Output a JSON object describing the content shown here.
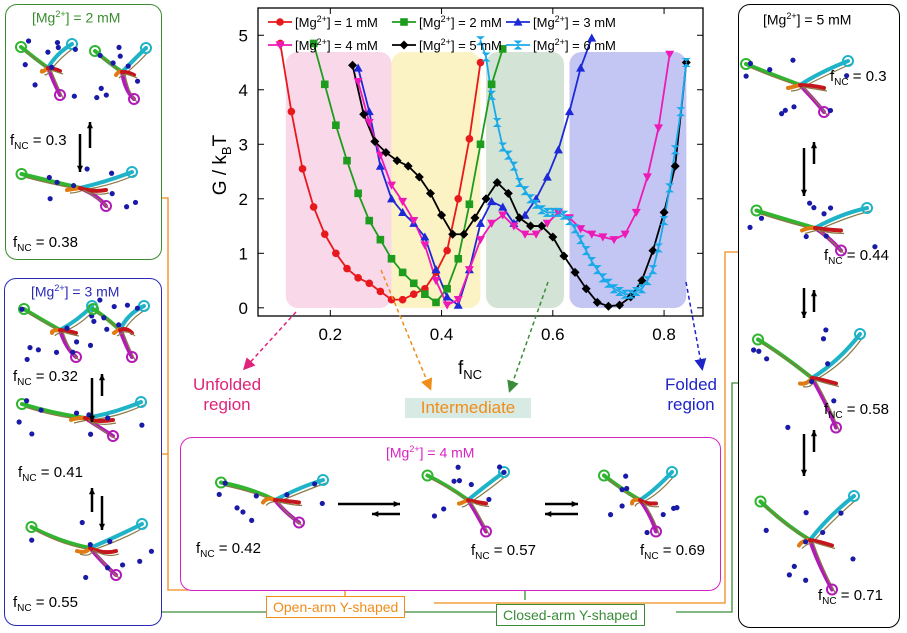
{
  "chart_data": {
    "type": "line",
    "xlabel_main": "f",
    "xlabel_sub": "NC",
    "ylabel_main": "G / k",
    "ylabel_sub": "B",
    "ylabel_tail": "T",
    "xlim": [
      0.07,
      0.87
    ],
    "ylim": [
      -0.15,
      5.5
    ],
    "xticks": [
      "0.2",
      "0.4",
      "0.6",
      "0.8"
    ],
    "xtick_values": [
      0.2,
      0.4,
      0.6,
      0.8
    ],
    "yticks": [
      "0",
      "1",
      "2",
      "3",
      "4",
      "5"
    ],
    "ytick_values": [
      0,
      1,
      2,
      3,
      4,
      5
    ],
    "legend_placement": "top",
    "shaded_regions": [
      {
        "from": 0.12,
        "to": 0.31,
        "color": "#f9d8ea"
      },
      {
        "from": 0.31,
        "to": 0.47,
        "color": "#fbf3c4"
      },
      {
        "from": 0.48,
        "to": 0.62,
        "color": "#d3e3d5"
      },
      {
        "from": 0.63,
        "to": 0.84,
        "color": "#c3c5f3"
      }
    ],
    "series": [
      {
        "name_pre": "[Mg",
        "name_sup": "2+",
        "name_post": "] = 1 mM",
        "color": "#e8191c",
        "marker": "circle",
        "x": [
          0.11,
          0.13,
          0.15,
          0.17,
          0.19,
          0.21,
          0.23,
          0.25,
          0.27,
          0.29,
          0.31,
          0.33,
          0.35,
          0.37,
          0.39,
          0.41,
          0.43,
          0.45,
          0.47
        ],
        "y": [
          4.85,
          3.6,
          2.55,
          1.85,
          1.35,
          1.0,
          0.72,
          0.55,
          0.45,
          0.3,
          0.15,
          0.15,
          0.25,
          0.35,
          0.65,
          1.05,
          2.0,
          3.1,
          4.5
        ]
      },
      {
        "name_pre": "[Mg",
        "name_sup": "2+",
        "name_post": "] = 2 mM",
        "color": "#1d9c1d",
        "marker": "square",
        "x": [
          0.17,
          0.19,
          0.21,
          0.23,
          0.25,
          0.27,
          0.29,
          0.31,
          0.33,
          0.35,
          0.37,
          0.39,
          0.41,
          0.43,
          0.45,
          0.47,
          0.49,
          0.51
        ],
        "y": [
          4.85,
          4.1,
          3.35,
          2.7,
          2.1,
          1.6,
          1.25,
          0.9,
          0.65,
          0.45,
          0.25,
          0.1,
          0.35,
          0.9,
          1.9,
          3.0,
          4.1,
          4.75
        ]
      },
      {
        "name_pre": "[Mg",
        "name_sup": "2+",
        "name_post": "] = 3 mM",
        "color": "#1d29d8",
        "marker": "triangle",
        "x": [
          0.25,
          0.27,
          0.29,
          0.31,
          0.33,
          0.35,
          0.37,
          0.39,
          0.41,
          0.43,
          0.45,
          0.47,
          0.49,
          0.51,
          0.53,
          0.55,
          0.57,
          0.59,
          0.61,
          0.63,
          0.65,
          0.67
        ],
        "y": [
          4.4,
          3.6,
          2.6,
          2.0,
          1.75,
          1.55,
          1.3,
          0.7,
          0.2,
          0.05,
          0.7,
          1.55,
          1.95,
          1.85,
          1.55,
          1.7,
          2.0,
          2.4,
          2.9,
          3.6,
          4.4,
          4.95
        ]
      },
      {
        "name_pre": "[Mg",
        "name_sup": "2+",
        "name_post": "] = 4 mM",
        "color": "#ee1ab8",
        "marker": "triangle-down",
        "x": [
          0.25,
          0.27,
          0.29,
          0.31,
          0.33,
          0.35,
          0.37,
          0.39,
          0.41,
          0.43,
          0.45,
          0.47,
          0.49,
          0.51,
          0.53,
          0.55,
          0.57,
          0.59,
          0.61,
          0.63,
          0.65,
          0.67,
          0.69,
          0.71,
          0.73,
          0.75,
          0.77,
          0.79,
          0.81
        ],
        "y": [
          4.15,
          3.4,
          2.8,
          2.25,
          1.95,
          1.6,
          1.15,
          0.5,
          0.05,
          0.15,
          0.7,
          1.25,
          1.55,
          1.7,
          1.5,
          1.35,
          1.35,
          1.55,
          1.75,
          1.65,
          1.45,
          1.35,
          1.3,
          1.25,
          1.35,
          1.75,
          2.4,
          3.3,
          4.65
        ]
      },
      {
        "name_pre": "[Mg",
        "name_sup": "2+",
        "name_post": "] = 5 mM",
        "color": "#000000",
        "marker": "diamond",
        "x": [
          0.24,
          0.26,
          0.28,
          0.3,
          0.32,
          0.34,
          0.36,
          0.38,
          0.4,
          0.42,
          0.44,
          0.46,
          0.48,
          0.5,
          0.52,
          0.54,
          0.56,
          0.58,
          0.6,
          0.62,
          0.64,
          0.66,
          0.68,
          0.7,
          0.72,
          0.74,
          0.76,
          0.78,
          0.8,
          0.82,
          0.84
        ],
        "y": [
          4.45,
          3.55,
          3.05,
          2.85,
          2.7,
          2.6,
          2.4,
          2.1,
          1.7,
          1.35,
          1.35,
          1.65,
          2.0,
          2.3,
          2.1,
          1.65,
          1.5,
          1.5,
          1.3,
          0.95,
          0.65,
          0.35,
          0.1,
          0.03,
          0.05,
          0.2,
          0.5,
          1.05,
          1.75,
          2.6,
          4.5
        ]
      },
      {
        "name_pre": "[Mg",
        "name_sup": "2+",
        "name_post": "] = 6 mM",
        "color": "#19aaea",
        "marker": "hourglass",
        "x": [
          0.47,
          0.48,
          0.49,
          0.5,
          0.51,
          0.52,
          0.53,
          0.54,
          0.55,
          0.56,
          0.57,
          0.58,
          0.59,
          0.6,
          0.61,
          0.62,
          0.63,
          0.64,
          0.65,
          0.66,
          0.67,
          0.68,
          0.69,
          0.7,
          0.71,
          0.72,
          0.73,
          0.74,
          0.75,
          0.76,
          0.77,
          0.78,
          0.79,
          0.8,
          0.81,
          0.82,
          0.83,
          0.84
        ],
        "y": [
          4.9,
          4.6,
          3.9,
          3.4,
          2.95,
          2.8,
          2.6,
          2.3,
          2.15,
          2.0,
          1.9,
          1.8,
          1.75,
          1.75,
          1.75,
          1.7,
          1.6,
          1.45,
          1.25,
          1.05,
          0.85,
          0.7,
          0.55,
          0.45,
          0.35,
          0.3,
          0.25,
          0.25,
          0.3,
          0.35,
          0.5,
          0.7,
          1.1,
          1.6,
          2.2,
          2.9,
          3.6,
          4.5
        ]
      }
    ]
  },
  "annotations": {
    "unfolded": [
      "Unfolded",
      "region"
    ],
    "intermediate": "Intermediate",
    "folded": [
      "Folded",
      "region"
    ],
    "open_arm": "Open-arm Y-shaped",
    "closed_arm": "Closed-arm Y-shaped"
  },
  "panels": {
    "mg2": {
      "title_pre": "[Mg",
      "title_sup": "2+",
      "title_post": "] = 2 mM",
      "color": "#3a8c2e",
      "labels": [
        {
          "v": " = 0.3"
        },
        {
          "v": " = 0.38"
        }
      ]
    },
    "mg3": {
      "title_pre": "[Mg",
      "title_sup": "2+",
      "title_post": "] = 3 mM",
      "color": "#2a2ab8",
      "labels": [
        {
          "v": " = 0.32"
        },
        {
          "v": " = 0.41"
        },
        {
          "v": " = 0.55"
        }
      ]
    },
    "mg4": {
      "title_pre": "[Mg",
      "title_sup": "2+",
      "title_post": "] = 4 mM",
      "color": "#d822c2",
      "labels": [
        {
          "v": " = 0.42"
        },
        {
          "v": " = 0.57"
        },
        {
          "v": " = 0.69"
        }
      ]
    },
    "mg5": {
      "title_pre": "[Mg",
      "title_sup": "2+",
      "title_post": "] = 5 mM",
      "color": "#000000",
      "labels": [
        {
          "v": " = 0.3"
        },
        {
          "v": " = 0.44"
        },
        {
          "v": " = 0.58"
        },
        {
          "v": " = 0.71"
        }
      ]
    }
  },
  "fnc_symbol": {
    "main": "f",
    "sub": "NC"
  },
  "colors": {
    "unfolded": "#e0237a",
    "intermediate": "#f08d1a",
    "closed": "#3a8c3a",
    "folded": "#1f24c8",
    "open_tag": "#f08d1a",
    "closed_tag": "#3a8c3a"
  }
}
